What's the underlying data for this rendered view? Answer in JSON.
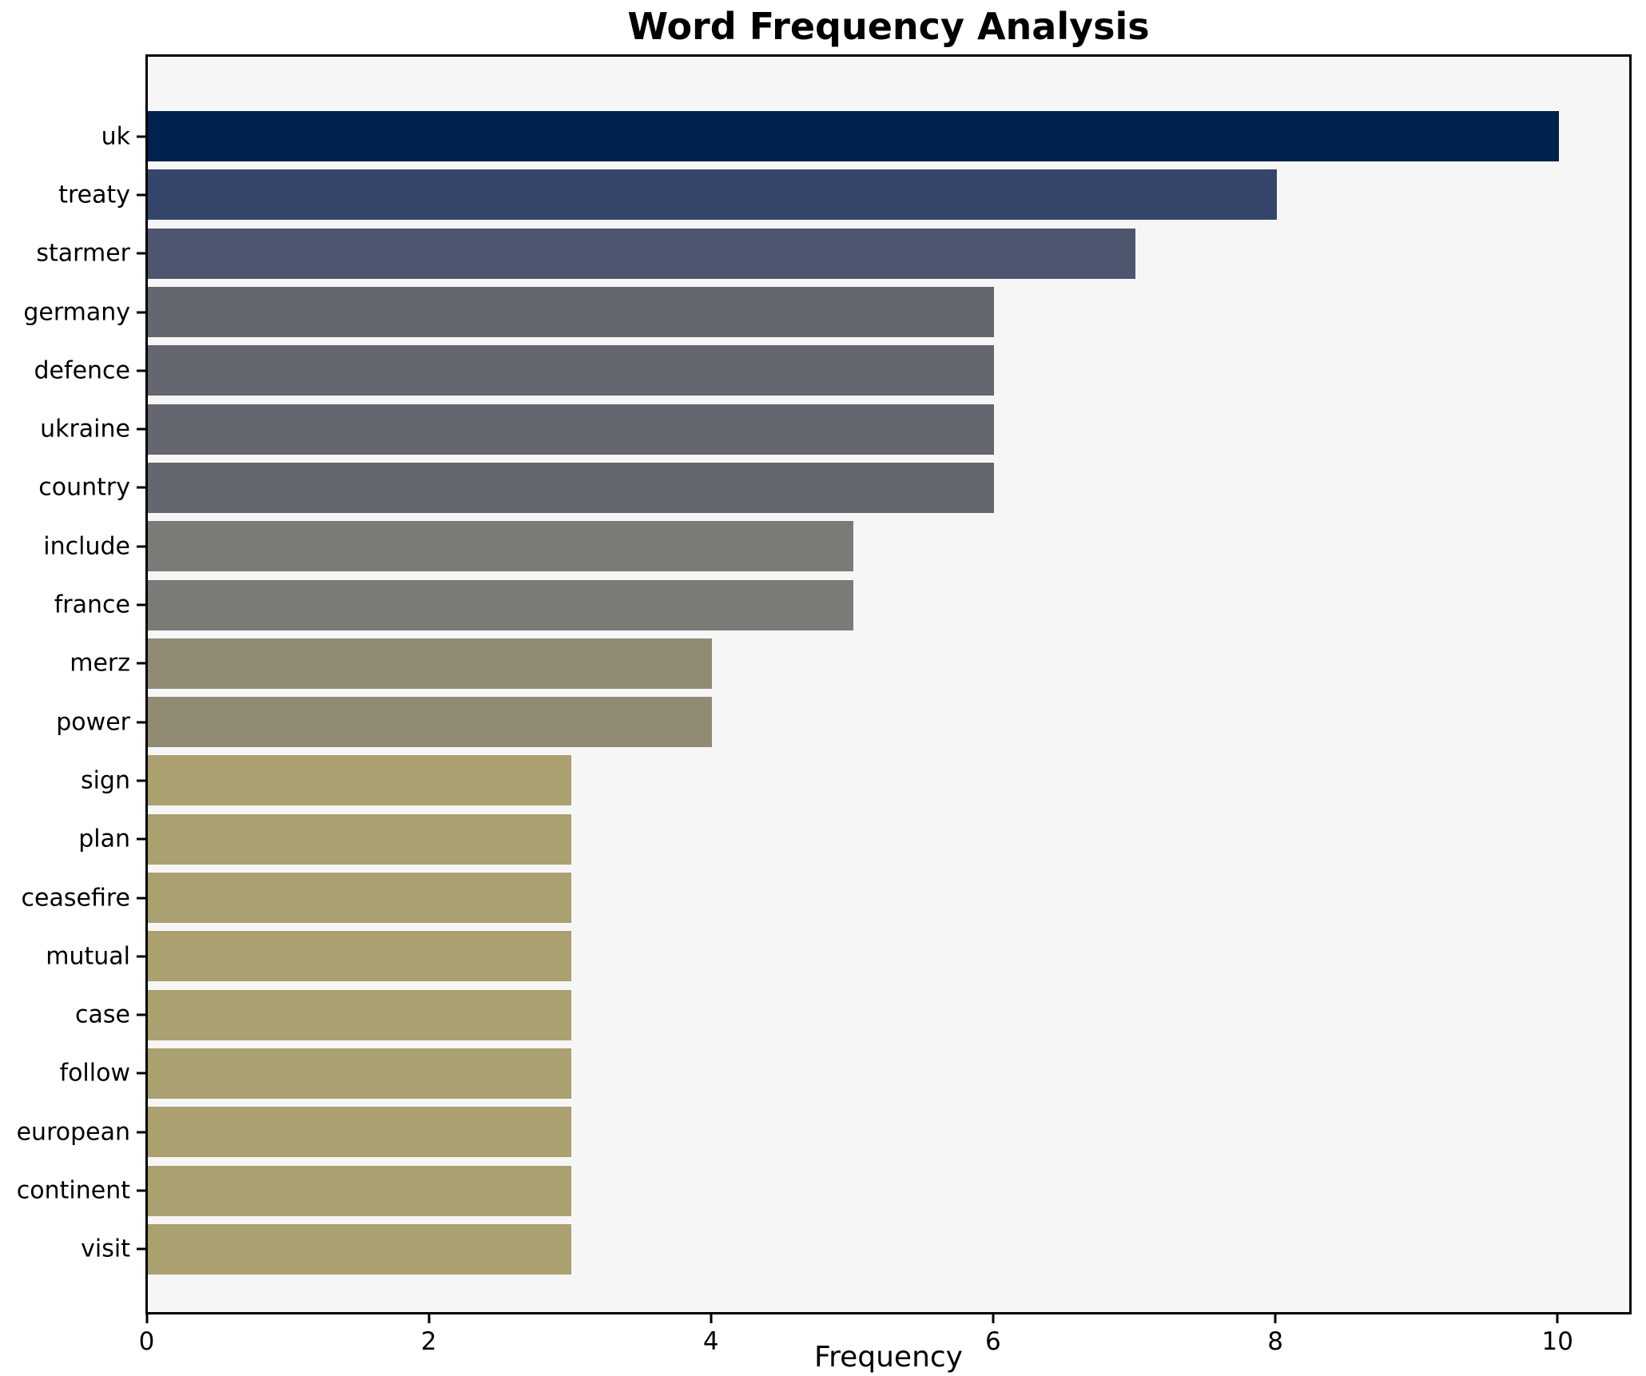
{
  "title": "Word Frequency Analysis",
  "x_axis": {
    "label": "Frequency",
    "ticks": [
      0,
      2,
      4,
      6,
      8,
      10
    ],
    "max": 10.5
  },
  "colors": {
    "figure_background": "#ffffff",
    "plot_background": "#f6f6f7",
    "spine": "#000000",
    "text": "#000000"
  },
  "chart_data": {
    "type": "bar",
    "orientation": "horizontal",
    "title": "Word Frequency Analysis",
    "xlabel": "Frequency",
    "ylabel": "",
    "xlim": [
      0,
      10.5
    ],
    "grid": false,
    "legend": false,
    "colormap": "cividis-by-value",
    "categories": [
      "uk",
      "treaty",
      "starmer",
      "germany",
      "defence",
      "ukraine",
      "country",
      "include",
      "france",
      "merz",
      "power",
      "sign",
      "plan",
      "ceasefire",
      "mutual",
      "case",
      "follow",
      "european",
      "continent",
      "visit"
    ],
    "values": [
      10,
      8,
      7,
      6,
      6,
      6,
      6,
      5,
      5,
      4,
      4,
      3,
      3,
      3,
      3,
      3,
      3,
      3,
      3,
      3
    ],
    "bar_colors": [
      "#00224e",
      "#36466b",
      "#4d566e",
      "#64676f",
      "#64676f",
      "#64676f",
      "#64676f",
      "#7b7a77",
      "#7b7a77",
      "#918b74",
      "#918b74",
      "#aba06f",
      "#aba06f",
      "#aba06f",
      "#aba06f",
      "#aba06f",
      "#aba06f",
      "#aba06f",
      "#aba06f",
      "#aba06f"
    ]
  }
}
